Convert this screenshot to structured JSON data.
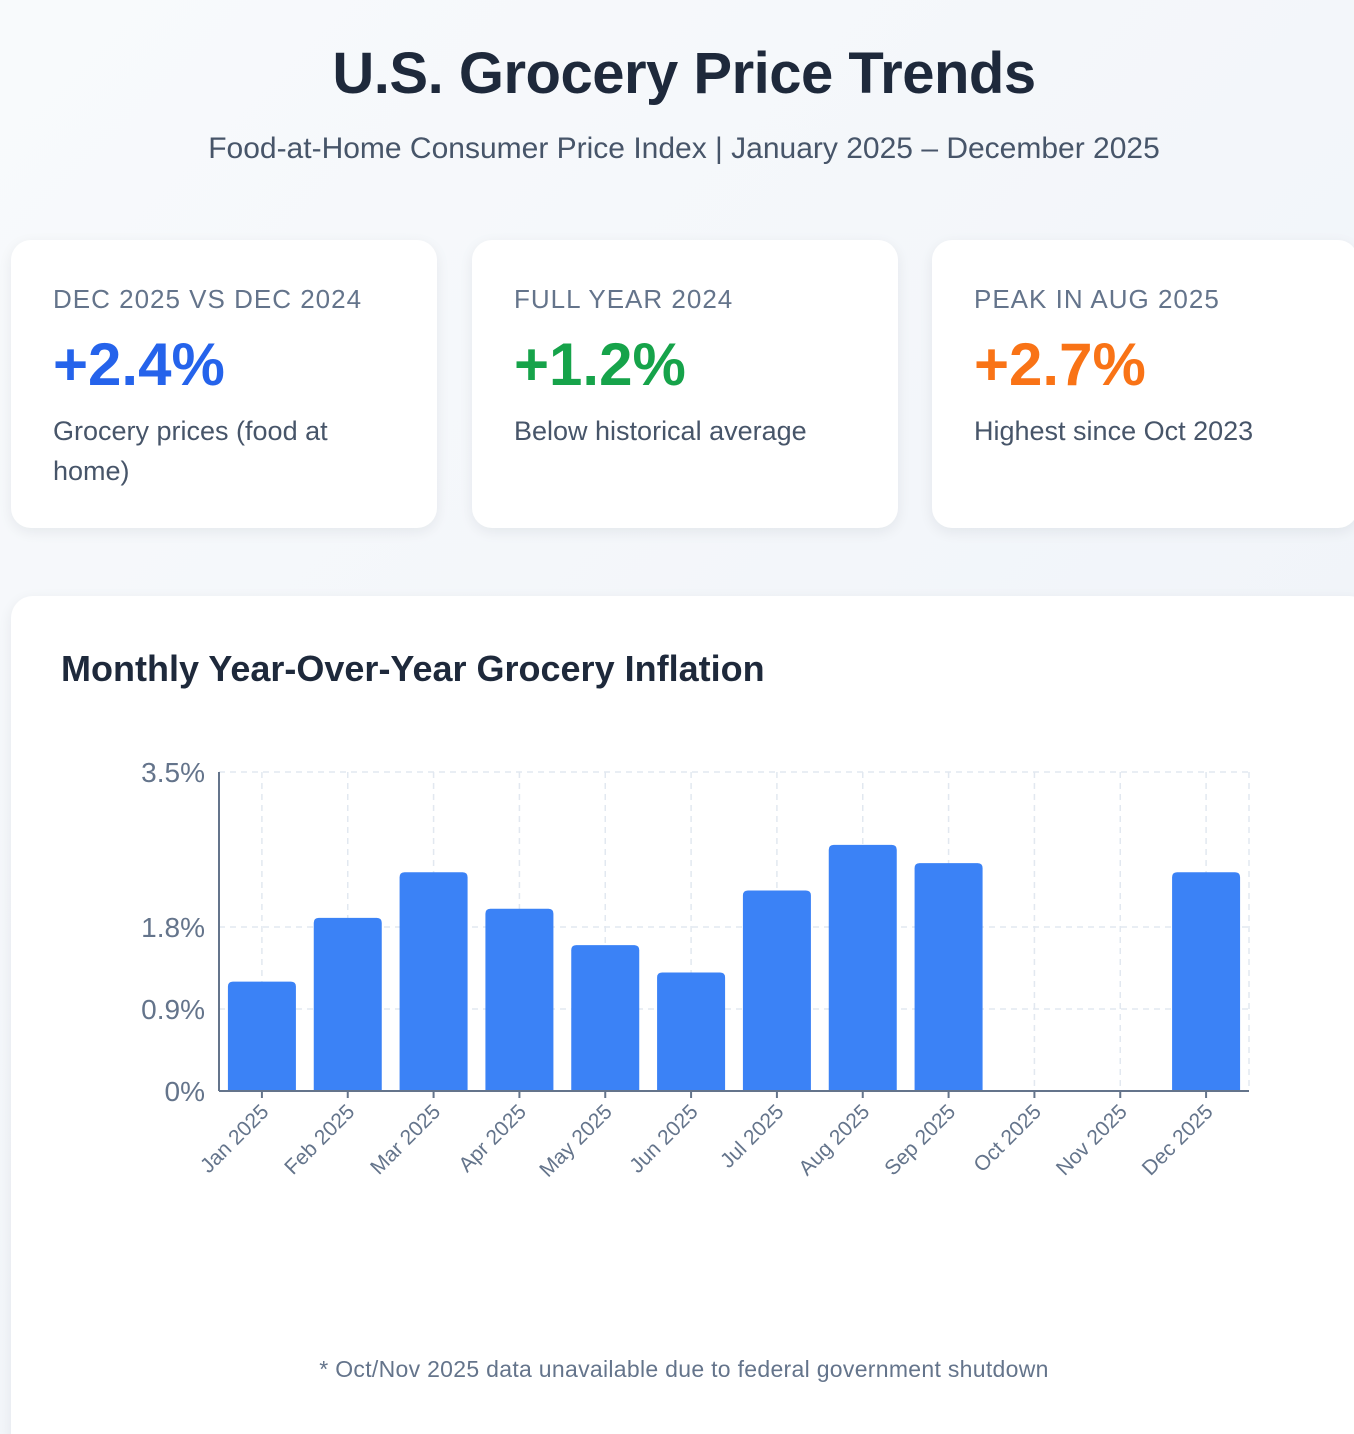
{
  "header": {
    "title": "U.S. Grocery Price Trends",
    "subtitle": "Food-at-Home Consumer Price Index | January 2025 – December 2025"
  },
  "cards": [
    {
      "label": "Dec 2025 vs Dec 2024",
      "value": "+2.4%",
      "desc": "Grocery prices (food at home)",
      "color": "#2563eb"
    },
    {
      "label": "Full Year 2024",
      "value": "+1.2%",
      "desc": "Below historical average",
      "color": "#16a34a"
    },
    {
      "label": "Peak in Aug 2025",
      "value": "+2.7%",
      "desc": "Highest since Oct 2023",
      "color": "#f97316"
    }
  ],
  "chart": {
    "title": "Monthly Year-Over-Year Grocery Inflation",
    "footnote": "* Oct/Nov 2025 data unavailable due to federal government shutdown"
  },
  "chart_data": {
    "type": "bar",
    "title": "Monthly Year-Over-Year Grocery Inflation",
    "xlabel": "",
    "ylabel": "",
    "categories": [
      "Jan 2025",
      "Feb 2025",
      "Mar 2025",
      "Apr 2025",
      "May 2025",
      "Jun 2025",
      "Jul 2025",
      "Aug 2025",
      "Sep 2025",
      "Oct 2025",
      "Nov 2025",
      "Dec 2025"
    ],
    "values": [
      1.2,
      1.9,
      2.4,
      2.0,
      1.6,
      1.3,
      2.2,
      2.7,
      2.5,
      null,
      null,
      2.4
    ],
    "ylim": [
      0,
      3.5
    ],
    "yticks": [
      0,
      0.9,
      1.8,
      3.5
    ],
    "ytick_labels": [
      "0%",
      "0.9%",
      "1.8%",
      "3.5%"
    ],
    "bar_color": "#3b82f6",
    "grid": true,
    "legend": "none"
  }
}
